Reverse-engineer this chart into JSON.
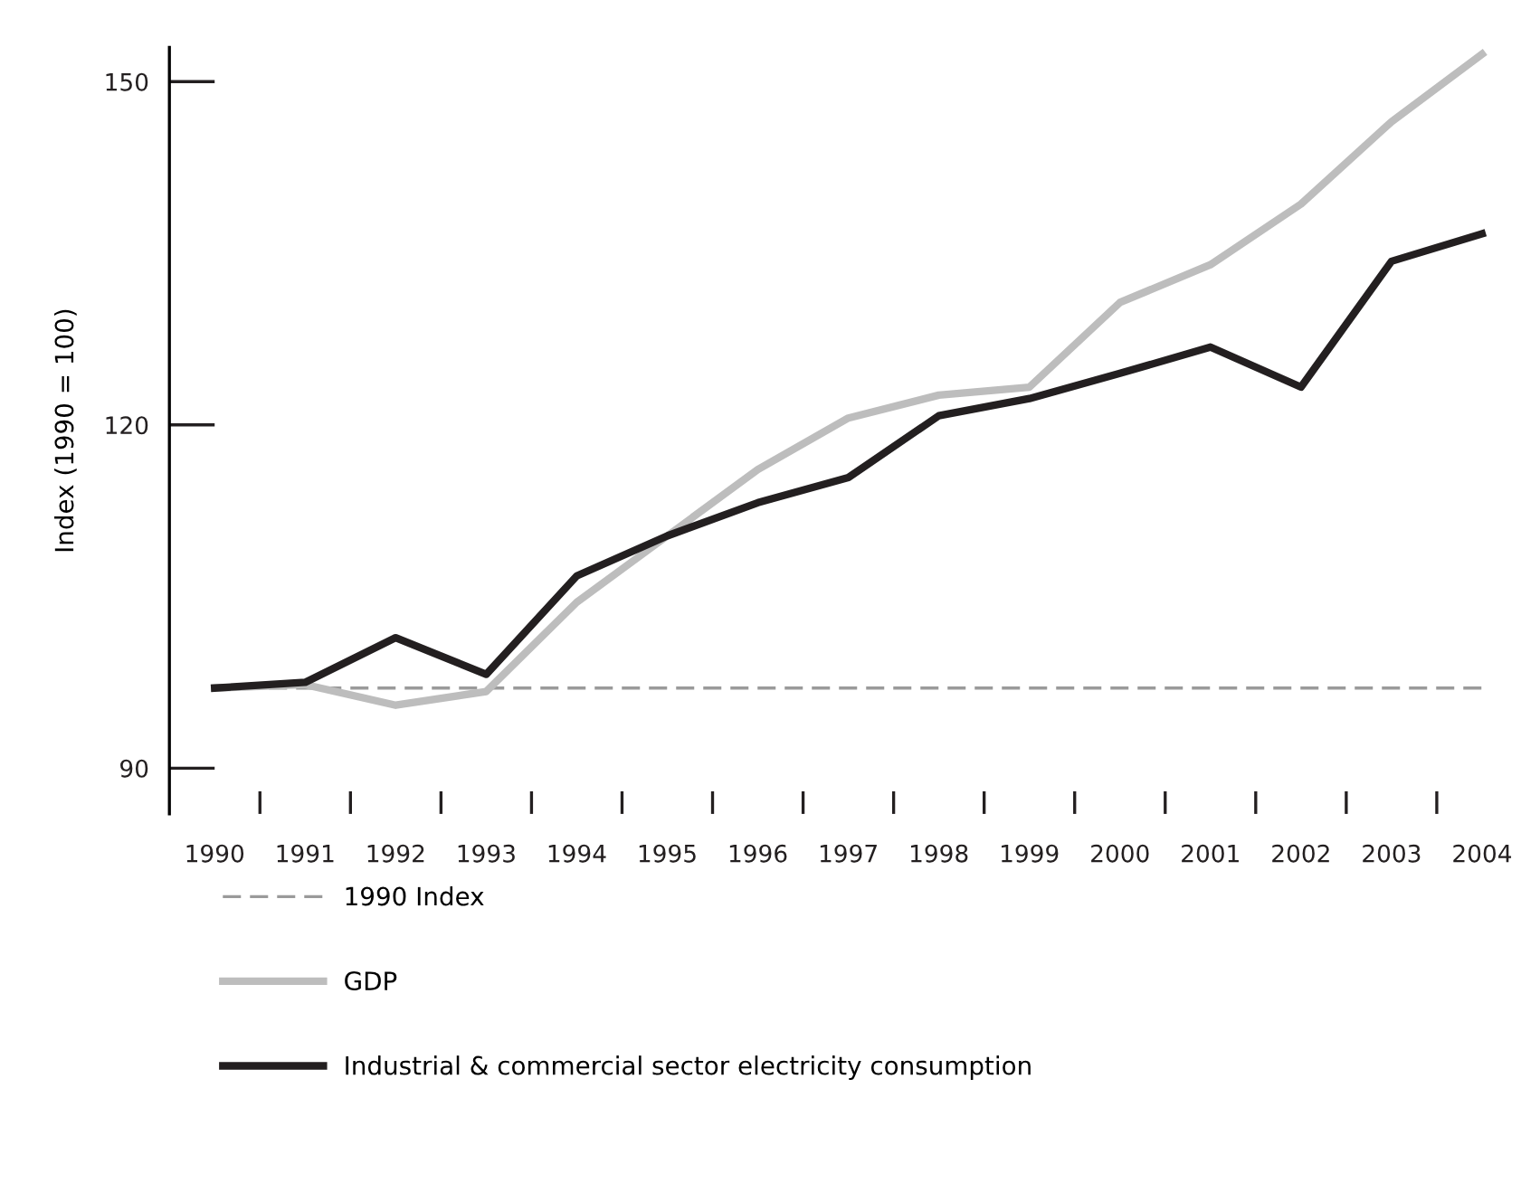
{
  "chart_data": {
    "type": "line",
    "ylabel": "Index (1990 = 100)",
    "categories": [
      "1990",
      "1991",
      "1992",
      "1993",
      "1994",
      "1995",
      "1996",
      "1997",
      "1998",
      "1999",
      "2000",
      "2001",
      "2002",
      "2003",
      "2004"
    ],
    "series": [
      {
        "name": "GDP",
        "color": "#bdbdbd",
        "values": [
          97.0,
          97.3,
          95.5,
          96.7,
          104.5,
          110.3,
          116.1,
          120.6,
          122.6,
          123.3,
          130.7,
          134.0,
          139.3,
          146.5,
          152.4
        ]
      },
      {
        "name": "Industrial & commercial sector electricity consumption",
        "color": "#231f20",
        "values": [
          97.0,
          97.5,
          101.4,
          98.2,
          106.8,
          110.3,
          113.2,
          115.4,
          120.8,
          122.3,
          124.5,
          126.8,
          123.3,
          134.3,
          136.7
        ]
      }
    ],
    "ref_lines": [
      {
        "axis": "y",
        "value": 97.0,
        "label": "1990 Index",
        "color": "#9a9a9a",
        "line_style": "dashed"
      }
    ],
    "ylim": [
      86,
      153
    ],
    "yticks": [
      90,
      120,
      150
    ],
    "grid": false,
    "legend": "bottom",
    "marker": "none",
    "line_style": "solid"
  }
}
